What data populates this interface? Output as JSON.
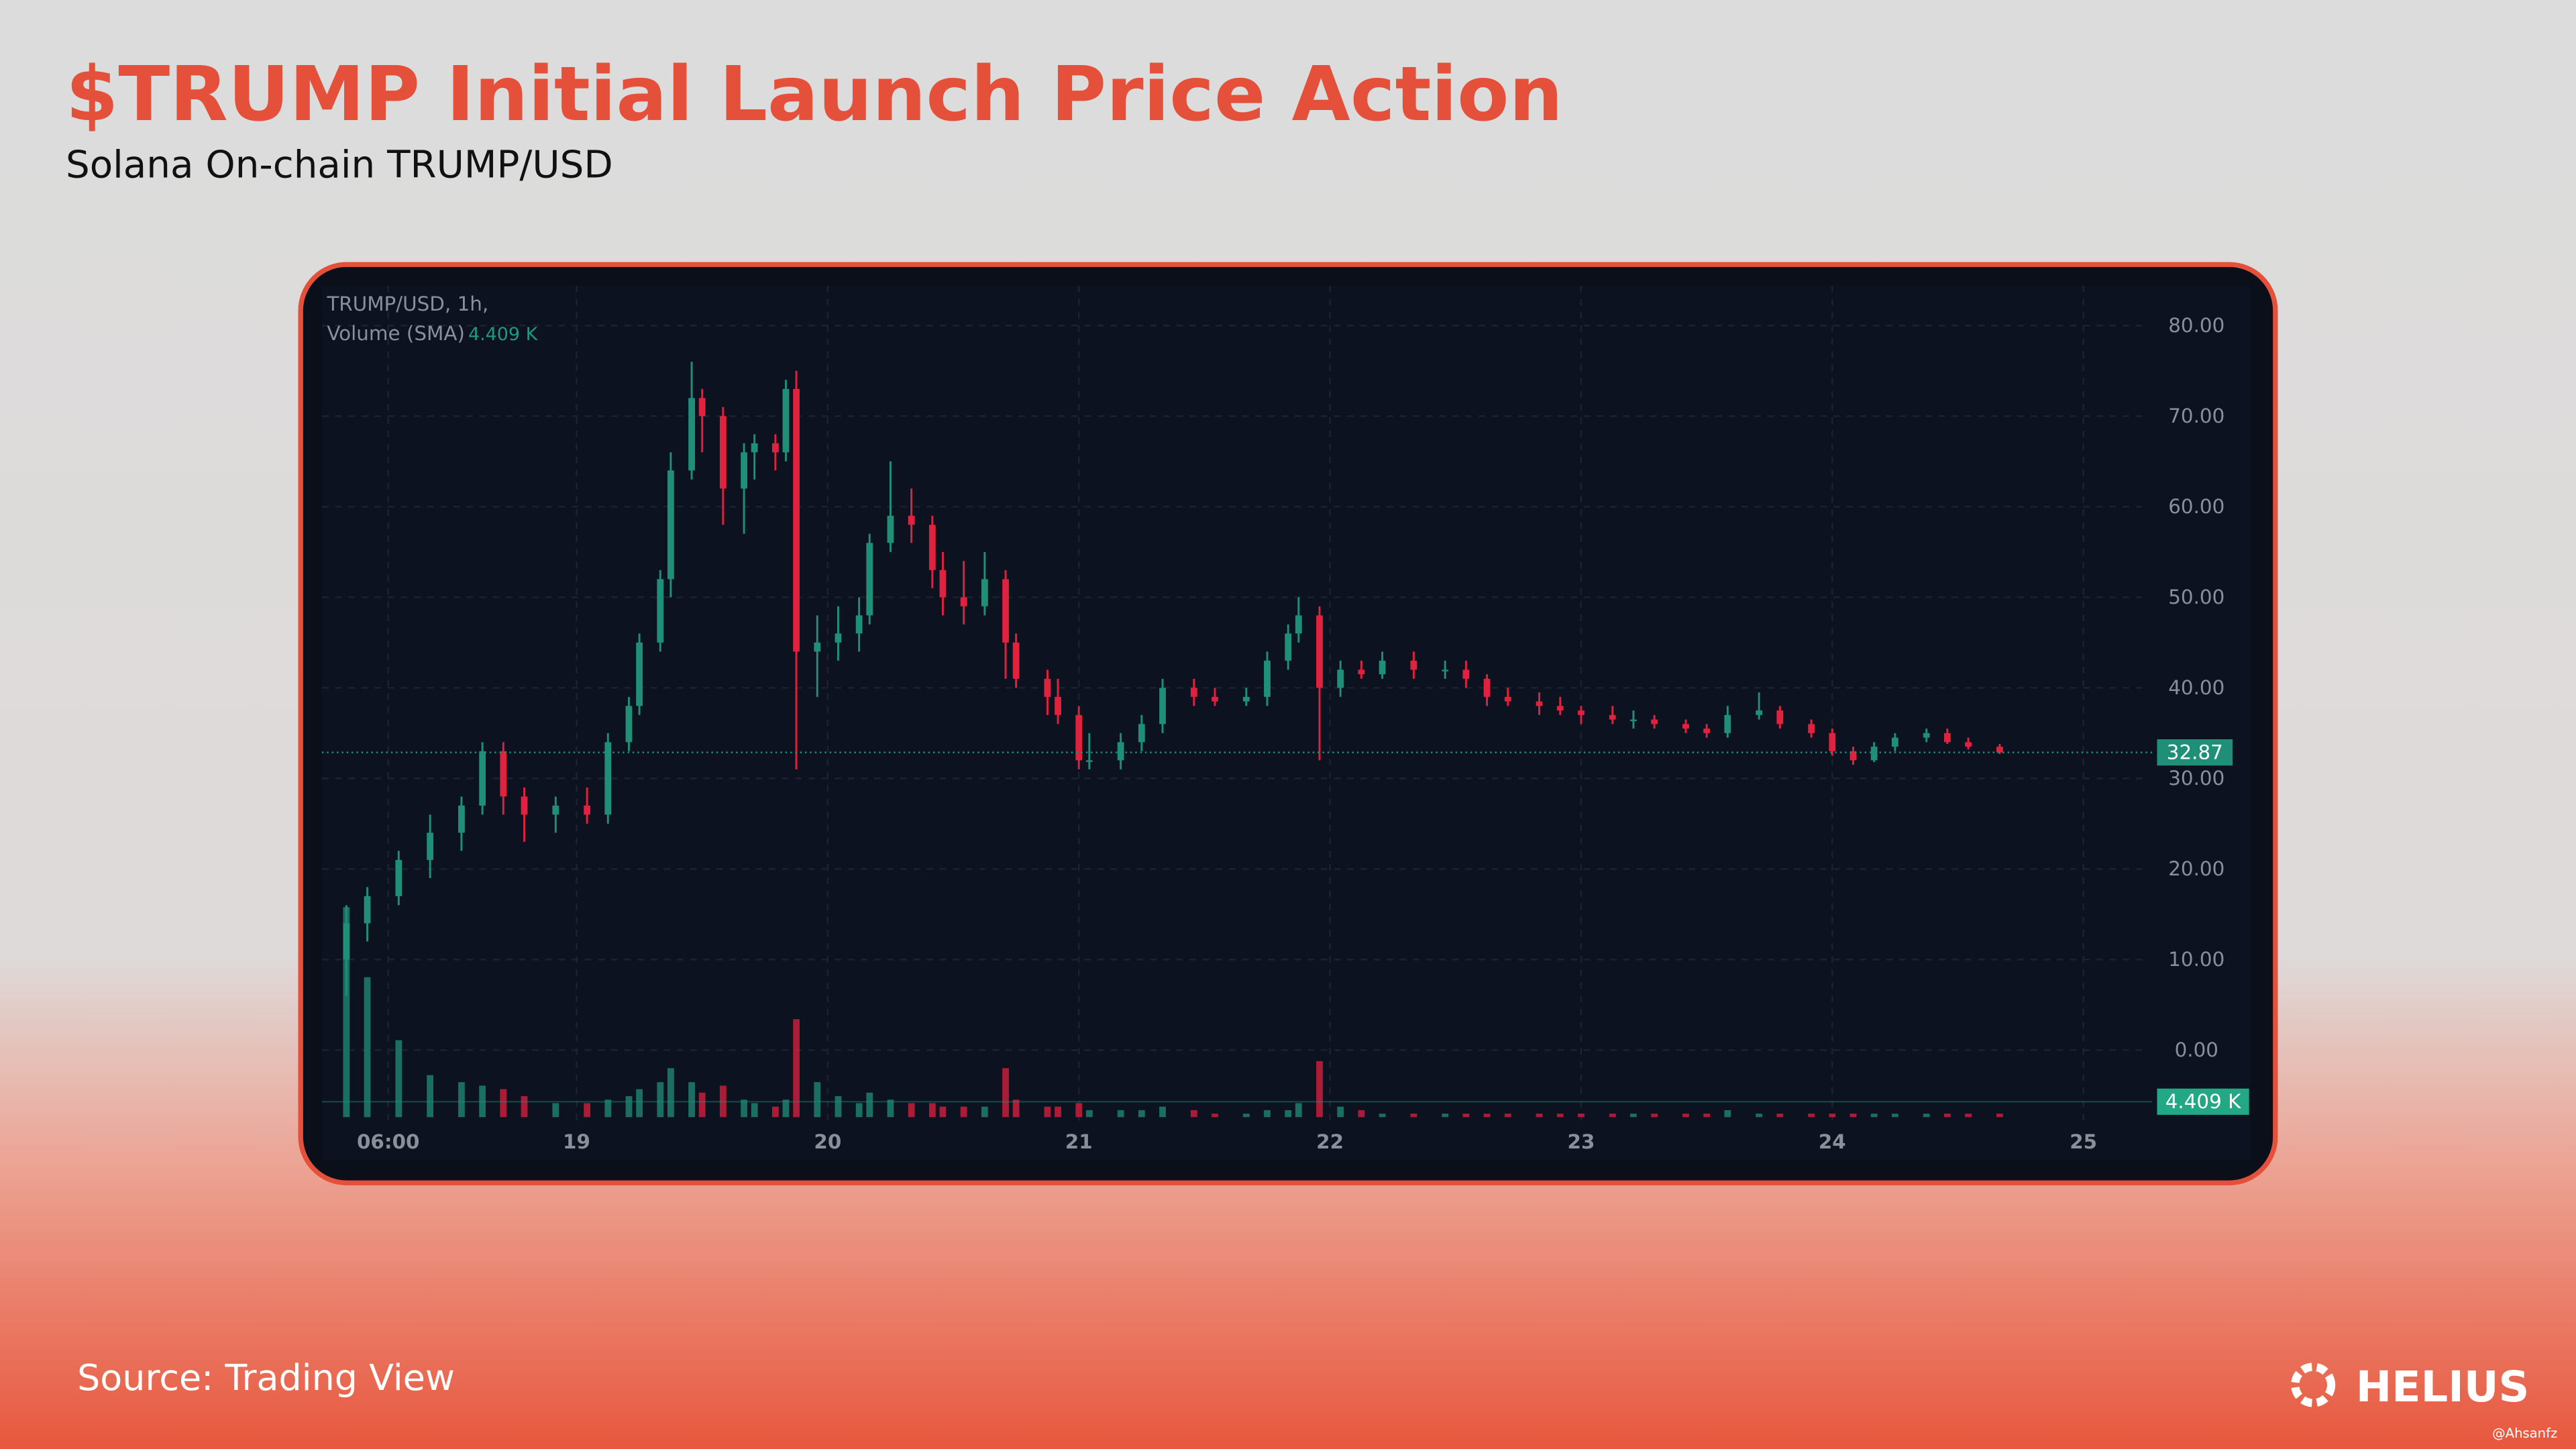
{
  "chart_data": {
    "type": "candlestick",
    "title": "$TRUMP Initial Launch Price Action",
    "subtitle": "Solana On-chain TRUMP/USD",
    "symbol_label": "TRUMP/USD, 1h,",
    "volume_label": "Volume (SMA)",
    "volume_sma": 4.409,
    "volume_sma_label": "4.409 K",
    "last_price": 32.87,
    "source": "Source: Trading View",
    "up_color": "#1f8f78",
    "down_color": "#e0223f",
    "grid": true,
    "xlim": [
      0,
      173
    ],
    "xticks": [
      {
        "value": 6,
        "label": "06:00"
      },
      {
        "value": 24,
        "label": "19"
      },
      {
        "value": 48,
        "label": "20"
      },
      {
        "value": 72,
        "label": "21"
      },
      {
        "value": 96,
        "label": "22"
      },
      {
        "value": 120,
        "label": "23"
      },
      {
        "value": 144,
        "label": "24"
      },
      {
        "value": 168,
        "label": "25"
      }
    ],
    "ylim": [
      -7.4,
      84.2
    ],
    "yticks": [
      {
        "value": 0,
        "label": "0.00"
      },
      {
        "value": 10,
        "label": "10.00"
      },
      {
        "value": 20,
        "label": "20.00"
      },
      {
        "value": 30,
        "label": "30.00"
      },
      {
        "value": 40,
        "label": "40.00"
      },
      {
        "value": 50,
        "label": "50.00"
      },
      {
        "value": 60,
        "label": "60.00"
      },
      {
        "value": 70,
        "label": "70.00"
      },
      {
        "value": 80,
        "label": "80.00"
      }
    ],
    "vlim": [
      0,
      100
    ],
    "x": [
      2,
      4,
      7,
      10,
      13,
      15,
      17,
      19,
      22,
      25,
      27,
      29,
      30,
      32,
      33,
      35,
      36,
      38,
      40,
      41,
      43,
      44,
      45,
      47,
      49,
      51,
      52,
      54,
      56,
      58,
      59,
      61,
      63,
      65,
      66,
      69,
      70,
      72,
      73,
      76,
      78,
      80,
      83,
      85,
      88,
      90,
      92,
      93,
      95,
      97,
      99,
      101,
      104,
      107,
      109,
      111,
      113,
      116,
      118,
      120,
      123,
      125,
      127,
      130,
      132,
      134,
      137,
      139,
      142,
      144,
      146,
      148,
      150,
      153,
      155,
      157,
      160
    ],
    "ohlc": [
      [
        10,
        16,
        6,
        14
      ],
      [
        14,
        18,
        12,
        17
      ],
      [
        17,
        22,
        16,
        21
      ],
      [
        21,
        26,
        19,
        24
      ],
      [
        24,
        28,
        22,
        27
      ],
      [
        27,
        34,
        26,
        33
      ],
      [
        33,
        34,
        26,
        28
      ],
      [
        28,
        29,
        23,
        26
      ],
      [
        26,
        28,
        24,
        27
      ],
      [
        27,
        29,
        25,
        26
      ],
      [
        26,
        35,
        25,
        34
      ],
      [
        34,
        39,
        33,
        38
      ],
      [
        38,
        46,
        37,
        45
      ],
      [
        45,
        53,
        44,
        52
      ],
      [
        52,
        66,
        50,
        64
      ],
      [
        64,
        76,
        63,
        72
      ],
      [
        72,
        73,
        66,
        70
      ],
      [
        70,
        71,
        58,
        62
      ],
      [
        62,
        67,
        57,
        66
      ],
      [
        66,
        68,
        63,
        67
      ],
      [
        67,
        68,
        64,
        66
      ],
      [
        66,
        74,
        65,
        73
      ],
      [
        73,
        75,
        31,
        44
      ],
      [
        44,
        48,
        39,
        45
      ],
      [
        45,
        49,
        43,
        46
      ],
      [
        46,
        50,
        44,
        48
      ],
      [
        48,
        57,
        47,
        56
      ],
      [
        56,
        65,
        55,
        59
      ],
      [
        59,
        62,
        56,
        58
      ],
      [
        58,
        59,
        51,
        53
      ],
      [
        53,
        55,
        48,
        50
      ],
      [
        50,
        54,
        47,
        49
      ],
      [
        49,
        55,
        48,
        52
      ],
      [
        52,
        53,
        41,
        45
      ],
      [
        45,
        46,
        40,
        41
      ],
      [
        41,
        42,
        37,
        39
      ],
      [
        39,
        41,
        36,
        37
      ],
      [
        37,
        38,
        31,
        32
      ],
      [
        32,
        35,
        31,
        32
      ],
      [
        32,
        35,
        31,
        34
      ],
      [
        34,
        37,
        33,
        36
      ],
      [
        36,
        41,
        35,
        40
      ],
      [
        40,
        41,
        38,
        39
      ],
      [
        39,
        40,
        38,
        38.5
      ],
      [
        38.5,
        40,
        38,
        39
      ],
      [
        39,
        44,
        38,
        43
      ],
      [
        43,
        47,
        42,
        46
      ],
      [
        46,
        50,
        45,
        48
      ],
      [
        48,
        49,
        32,
        40
      ],
      [
        40,
        43,
        39,
        42
      ],
      [
        42,
        43,
        41,
        41.5
      ],
      [
        41.5,
        44,
        41,
        43
      ],
      [
        43,
        44,
        41,
        42
      ],
      [
        42,
        43,
        41,
        42
      ],
      [
        42,
        43,
        40,
        41
      ],
      [
        41,
        41.5,
        38,
        39
      ],
      [
        39,
        40,
        38,
        38.5
      ],
      [
        38.5,
        39.5,
        37,
        38
      ],
      [
        38,
        39,
        37,
        37.5
      ],
      [
        37.5,
        38,
        36,
        37
      ],
      [
        37,
        38,
        36,
        36.5
      ],
      [
        36.5,
        37.5,
        35.5,
        36.5
      ],
      [
        36.5,
        37,
        35.5,
        36
      ],
      [
        36,
        36.5,
        35,
        35.5
      ],
      [
        35.5,
        36,
        34.5,
        35
      ],
      [
        35,
        38,
        34.5,
        37
      ],
      [
        37,
        39.5,
        36.5,
        37.5
      ],
      [
        37.5,
        38,
        35.5,
        36
      ],
      [
        36,
        36.5,
        34.5,
        35
      ],
      [
        35,
        35.5,
        32.5,
        33
      ],
      [
        33,
        33.5,
        31.5,
        32
      ],
      [
        32,
        34,
        31.8,
        33.5
      ],
      [
        33.5,
        35,
        33,
        34.5
      ],
      [
        34.5,
        35.5,
        34,
        35
      ],
      [
        35,
        35.5,
        33.8,
        34
      ],
      [
        34,
        34.5,
        33.2,
        33.5
      ],
      [
        33.5,
        33.8,
        32.7,
        32.87
      ]
    ],
    "volume": [
      60,
      40,
      22,
      12,
      10,
      9,
      8,
      6,
      4,
      4,
      5,
      6,
      8,
      10,
      14,
      10,
      7,
      9,
      5,
      4,
      3,
      5,
      28,
      10,
      6,
      4,
      7,
      5,
      4,
      4,
      3,
      3,
      3,
      14,
      5,
      3,
      3,
      4,
      2,
      2,
      2,
      3,
      2,
      1,
      1,
      2,
      2,
      4,
      16,
      3,
      2,
      1,
      1,
      1,
      1,
      1,
      1,
      1,
      1,
      1,
      1,
      1,
      1,
      1,
      1,
      2,
      1,
      1,
      1,
      1,
      1,
      1,
      1,
      1,
      1,
      1,
      1
    ]
  },
  "slide": {
    "brand": "HELIUS",
    "watermark": "@Ahsanfz"
  }
}
